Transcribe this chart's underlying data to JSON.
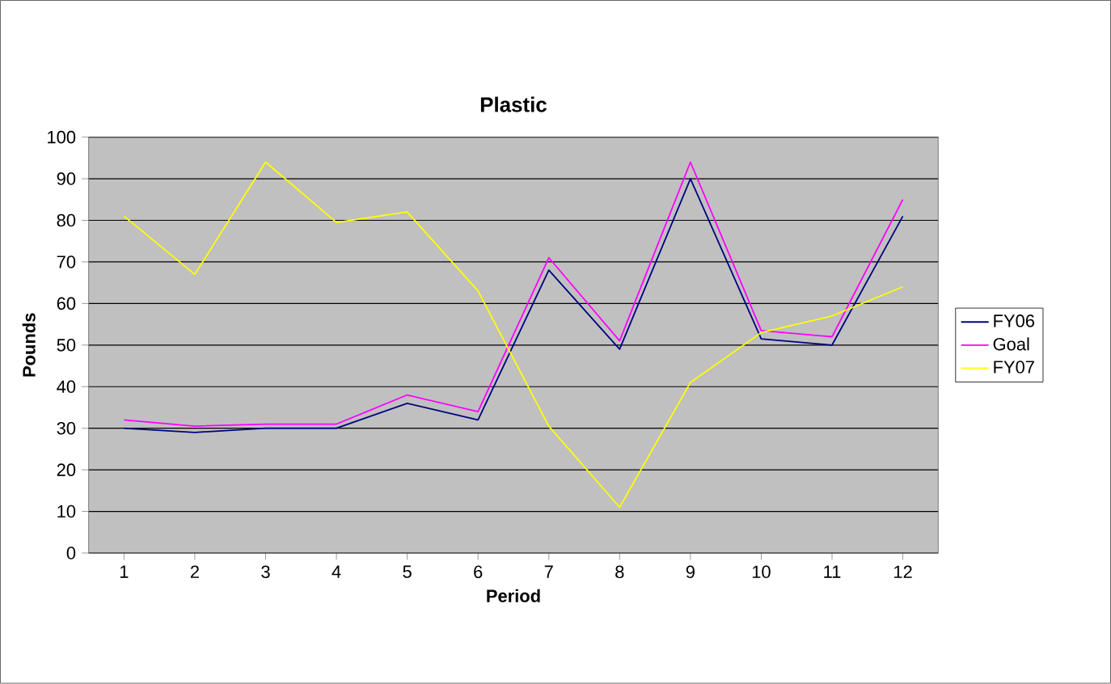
{
  "chart_data": {
    "type": "line",
    "title": "Plastic",
    "xlabel": "Period",
    "ylabel": "Pounds",
    "categories": [
      "1",
      "2",
      "3",
      "4",
      "5",
      "6",
      "7",
      "8",
      "9",
      "10",
      "11",
      "12"
    ],
    "series": [
      {
        "name": "FY06",
        "color": "#000080",
        "values": [
          30,
          29,
          30,
          30,
          36,
          32,
          68,
          49,
          90,
          51.5,
          50,
          81
        ]
      },
      {
        "name": "Goal",
        "color": "#ff00ff",
        "values": [
          32,
          30.5,
          31,
          31,
          38,
          34,
          71,
          51,
          94,
          53.5,
          52,
          85
        ]
      },
      {
        "name": "FY07",
        "color": "#ffff00",
        "values": [
          81,
          67,
          94,
          79.5,
          82,
          63,
          30.5,
          11,
          41,
          53,
          57,
          64
        ]
      }
    ],
    "ylim": [
      0,
      100
    ],
    "yticks": [
      0,
      10,
      20,
      30,
      40,
      50,
      60,
      70,
      80,
      90,
      100
    ],
    "grid": "y",
    "legend": "right",
    "marker": "none",
    "line_style": "solid"
  }
}
